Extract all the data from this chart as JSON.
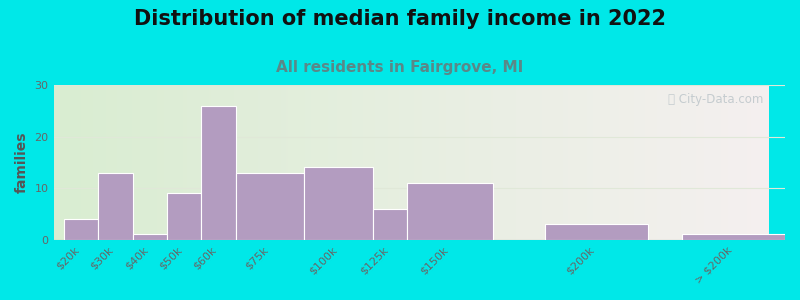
{
  "title": "Distribution of median family income in 2022",
  "subtitle": "All residents in Fairgrove, MI",
  "ylabel": "families",
  "categories": [
    "$20k",
    "$30k",
    "$40k",
    "$50k",
    "$60k",
    "$75k",
    "$100k",
    "$125k",
    "$150k",
    "$200k",
    "> $200k"
  ],
  "values": [
    4,
    13,
    1,
    9,
    26,
    13,
    14,
    6,
    11,
    3,
    1
  ],
  "bar_color": "#b39cc0",
  "bar_edge_color": "#c8b4d4",
  "background_outer": "#00e8e8",
  "grid_color": "#e0e8d8",
  "title_color": "#111111",
  "subtitle_color": "#5a8888",
  "ylabel_color": "#555555",
  "tick_color": "#666666",
  "watermark_color": "#c0c8cc",
  "ylim": [
    0,
    30
  ],
  "yticks": [
    0,
    10,
    20,
    30
  ],
  "title_fontsize": 15,
  "subtitle_fontsize": 11,
  "ylabel_fontsize": 10,
  "tick_fontsize": 8,
  "bg_left_color": "#d8ecd0",
  "bg_right_color": "#f0eeee",
  "bar_positions": [
    0,
    1,
    2,
    3,
    4,
    5,
    7,
    9,
    10,
    13,
    17
  ],
  "bar_widths": [
    1,
    1,
    1,
    1,
    1,
    1.5,
    1.5,
    1.5,
    2,
    3,
    3
  ]
}
